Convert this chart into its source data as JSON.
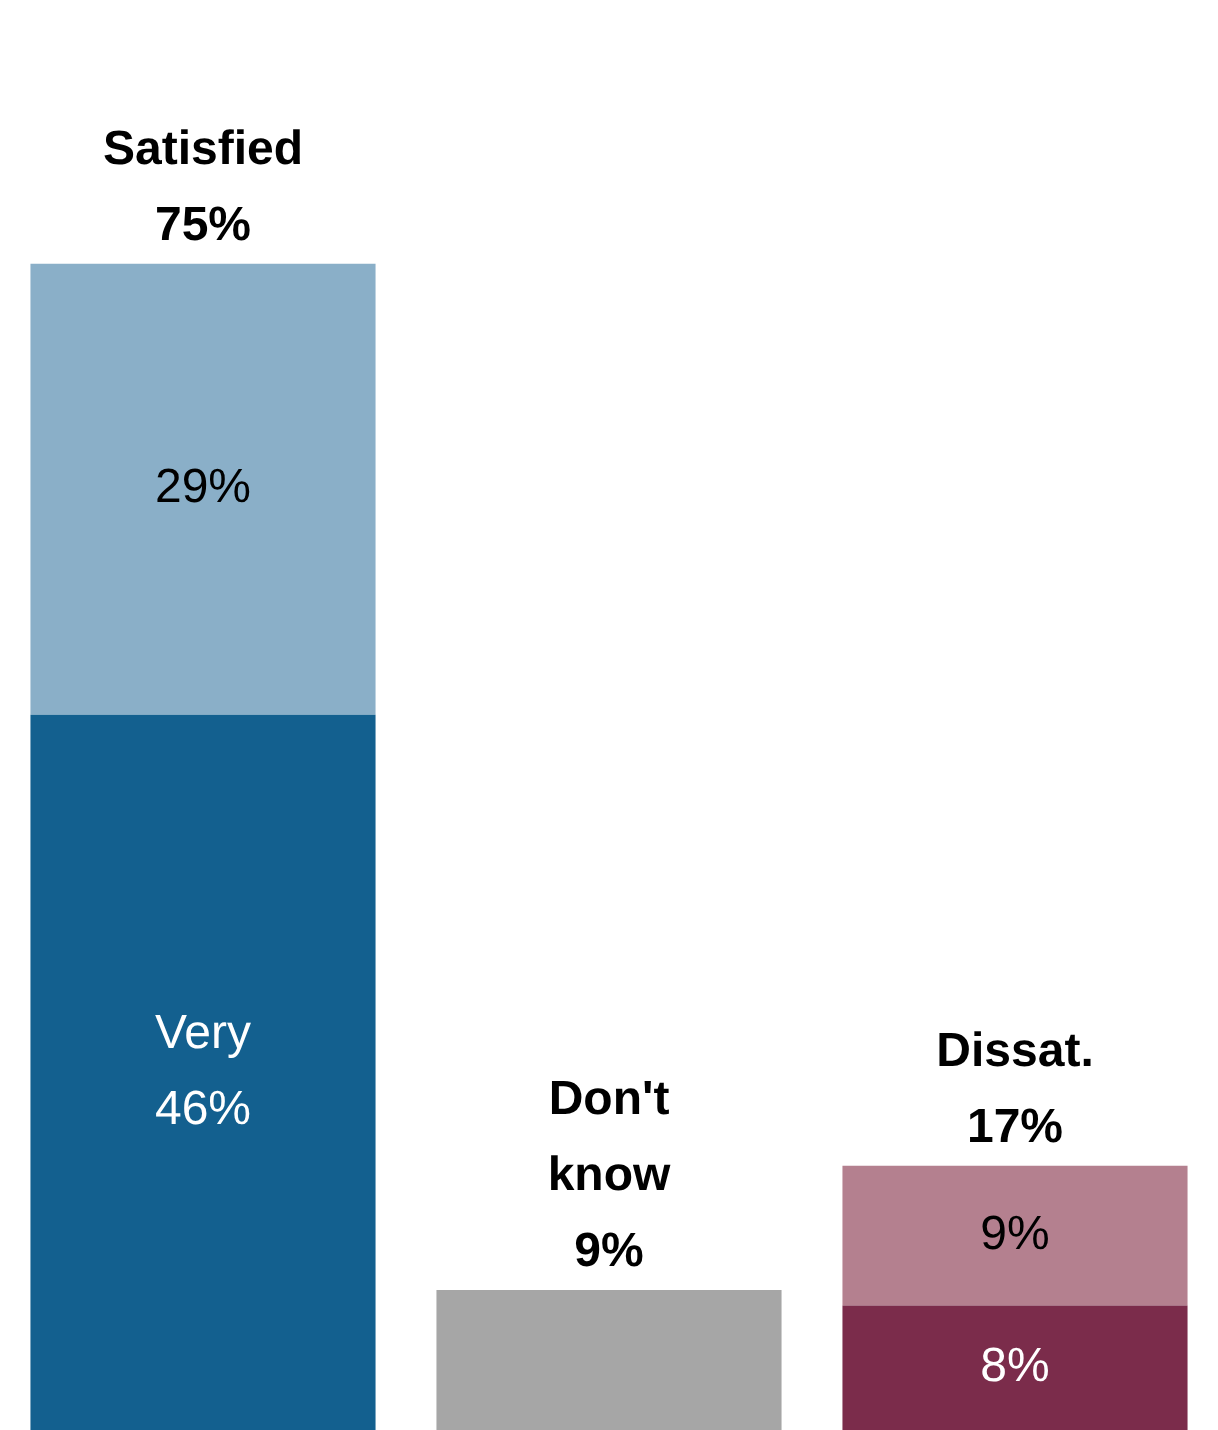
{
  "chart_data": {
    "type": "bar",
    "stacked": true,
    "categories": [
      "Satisfied",
      "Don't know",
      "Dissat."
    ],
    "totals": [
      "75%",
      "9%",
      "17%"
    ],
    "series": [
      {
        "values": [
          46,
          9,
          8
        ],
        "colors": [
          "#13608f",
          "#a6a6a6",
          "#7b2c4b"
        ],
        "value_labels": [
          "Very\n46%",
          null,
          "8%"
        ]
      },
      {
        "values": [
          29,
          null,
          9
        ],
        "colors": [
          "#8aafc8",
          null,
          "#b4808f"
        ],
        "value_labels": [
          "29%",
          null,
          "9%"
        ]
      }
    ],
    "legend": false
  }
}
